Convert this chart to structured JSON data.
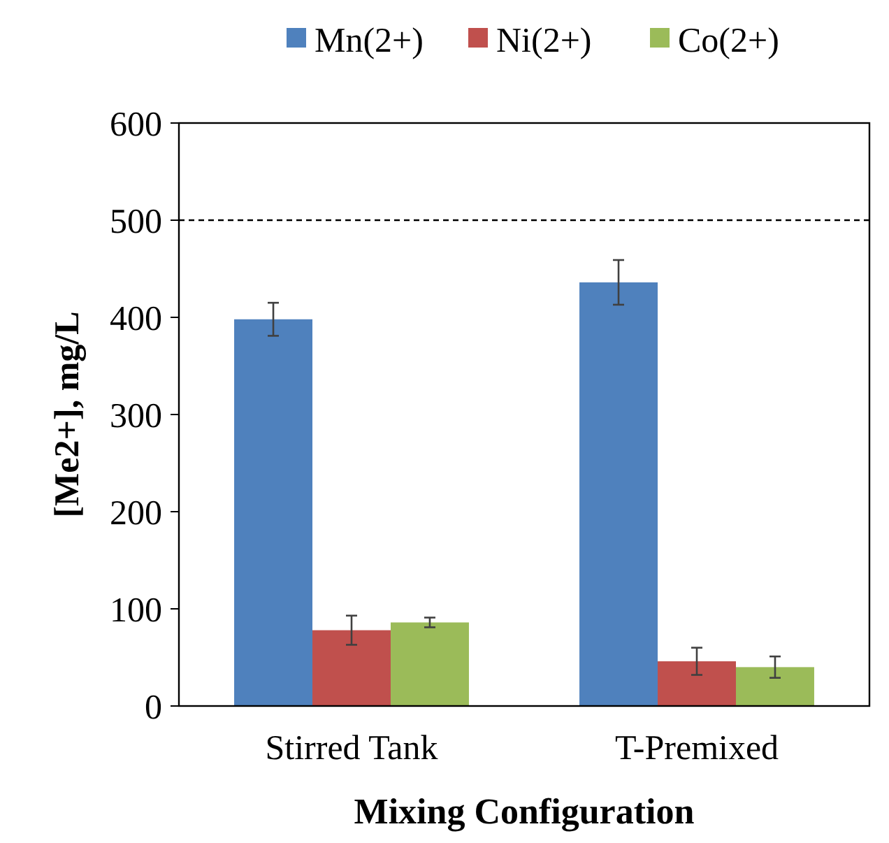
{
  "chart_data": {
    "type": "bar",
    "xlabel": "Mixing Configuration",
    "ylabel": "[Me2+], mg/L",
    "categories": [
      "Stirred Tank",
      "T-Premixed"
    ],
    "series": [
      {
        "name": "Mn(2+)",
        "color": "#4f81bd",
        "values": [
          398,
          436
        ],
        "errors": [
          17,
          23
        ]
      },
      {
        "name": "Ni(2+)",
        "color": "#c0504d",
        "values": [
          78,
          46
        ],
        "errors": [
          15,
          14
        ]
      },
      {
        "name": "Co(2+)",
        "color": "#9bbb59",
        "values": [
          86,
          40
        ],
        "errors": [
          5,
          11
        ]
      }
    ],
    "ylim": [
      0,
      600
    ],
    "yticks": [
      0,
      100,
      200,
      300,
      400,
      500,
      600
    ],
    "ref_lines": [
      {
        "axis": "y",
        "value": 500,
        "line_style": "dashed",
        "color": "#000000"
      }
    ],
    "legend": "top",
    "grid": false
  }
}
